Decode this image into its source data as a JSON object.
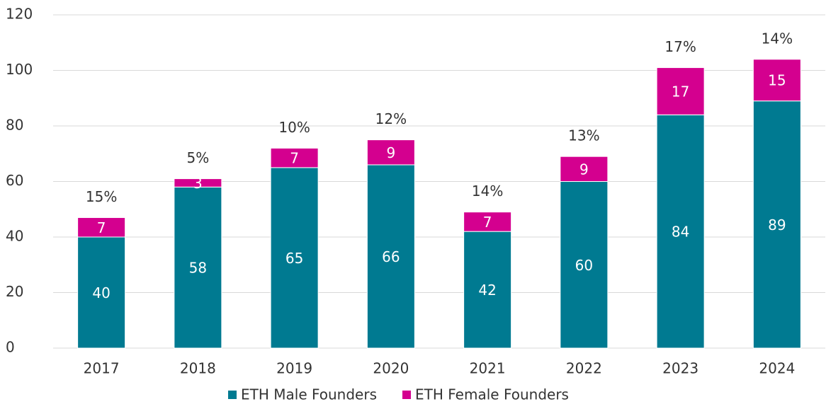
{
  "chart_data": {
    "type": "stacked_bar",
    "categories": [
      "2017",
      "2018",
      "2019",
      "2020",
      "2021",
      "2022",
      "2023",
      "2024"
    ],
    "series": [
      {
        "name": "ETH Male Founders",
        "color": "#007a91",
        "values": [
          40,
          58,
          65,
          66,
          42,
          60,
          84,
          89
        ]
      },
      {
        "name": "ETH Female Founders",
        "color": "#d4008f",
        "values": [
          7,
          3,
          7,
          9,
          7,
          9,
          17,
          15
        ]
      }
    ],
    "annotations": [
      "15%",
      "5%",
      "10%",
      "12%",
      "14%",
      "13%",
      "17%",
      "14%"
    ],
    "ylim": [
      0,
      120
    ],
    "yticks": [
      0,
      20,
      40,
      60,
      80,
      100,
      120
    ],
    "grid": true,
    "legend": "bottom"
  }
}
